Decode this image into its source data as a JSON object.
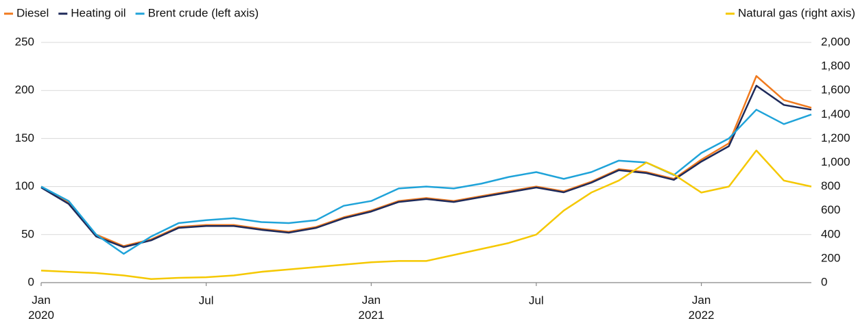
{
  "chart_data": {
    "type": "line",
    "x": [
      "2020-01",
      "2020-02",
      "2020-03",
      "2020-04",
      "2020-05",
      "2020-06",
      "2020-07",
      "2020-08",
      "2020-09",
      "2020-10",
      "2020-11",
      "2020-12",
      "2021-01",
      "2021-02",
      "2021-03",
      "2021-04",
      "2021-05",
      "2021-06",
      "2021-07",
      "2021-08",
      "2021-09",
      "2021-10",
      "2021-11",
      "2021-12",
      "2022-01",
      "2022-02",
      "2022-03",
      "2022-04",
      "2022-05"
    ],
    "xlim": [
      "2020-01",
      "2022-05"
    ],
    "xticks": [
      {
        "value": "2020-01",
        "label": "Jan\n2020"
      },
      {
        "value": "2020-07",
        "label": "Jul"
      },
      {
        "value": "2021-01",
        "label": "Jan\n2021"
      },
      {
        "value": "2021-07",
        "label": "Jul"
      },
      {
        "value": "2022-01",
        "label": "Jan\n2022"
      }
    ],
    "ylim": [
      0,
      250
    ],
    "yticks": [
      0,
      50,
      100,
      150,
      200,
      250
    ],
    "y2lim": [
      0,
      2000
    ],
    "y2ticks": [
      0,
      200,
      400,
      600,
      800,
      {
        "value": 1000,
        "label": "1,000"
      },
      {
        "value": 1200,
        "label": "1,200"
      },
      {
        "value": 1400,
        "label": "1,400"
      },
      {
        "value": 1600,
        "label": "1,600"
      },
      {
        "value": 1800,
        "label": "1,800"
      },
      {
        "value": 2000,
        "label": "2,000"
      }
    ],
    "grid": true,
    "series": [
      {
        "name": "Diesel",
        "color": "#f07a1e",
        "values": [
          100,
          83,
          50,
          38,
          45,
          58,
          60,
          60,
          56,
          53,
          58,
          68,
          75,
          85,
          88,
          85,
          90,
          95,
          100,
          95,
          105,
          118,
          115,
          108,
          128,
          145,
          215,
          190,
          182
        ]
      },
      {
        "name": "Heating oil",
        "color": "#1e2a5a",
        "values": [
          99,
          82,
          48,
          37,
          44,
          57,
          59,
          59,
          55,
          52,
          57,
          67,
          74,
          84,
          87,
          84,
          89,
          94,
          99,
          94,
          104,
          117,
          114,
          107,
          126,
          142,
          205,
          185,
          180
        ]
      },
      {
        "name": "Brent crude  (left axis)",
        "color": "#1fa3d9",
        "values": [
          100,
          85,
          50,
          30,
          48,
          62,
          65,
          67,
          63,
          62,
          65,
          80,
          85,
          98,
          100,
          98,
          103,
          110,
          115,
          108,
          115,
          127,
          125,
          112,
          135,
          150,
          180,
          165,
          175
        ]
      },
      {
        "name": "Natural gas (right axis)",
        "color": "#f5c800",
        "axis": "y2",
        "values": [
          100,
          90,
          80,
          60,
          30,
          40,
          45,
          60,
          90,
          110,
          130,
          150,
          170,
          180,
          180,
          230,
          280,
          330,
          400,
          600,
          750,
          850,
          1000,
          900,
          750,
          800,
          1100,
          850,
          800
        ]
      }
    ]
  }
}
